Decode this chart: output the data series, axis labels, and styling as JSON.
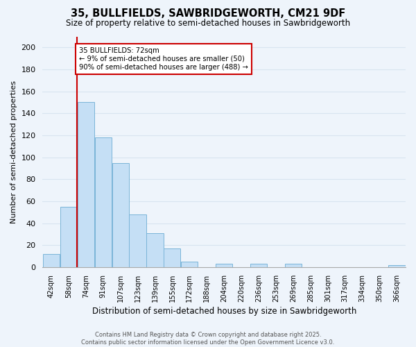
{
  "title": "35, BULLFIELDS, SAWBRIDGEWORTH, CM21 9DF",
  "subtitle": "Size of property relative to semi-detached houses in Sawbridgeworth",
  "xlabel": "Distribution of semi-detached houses by size in Sawbridgeworth",
  "ylabel": "Number of semi-detached properties",
  "bar_labels": [
    "42sqm",
    "58sqm",
    "74sqm",
    "91sqm",
    "107sqm",
    "123sqm",
    "139sqm",
    "155sqm",
    "172sqm",
    "188sqm",
    "204sqm",
    "220sqm",
    "236sqm",
    "253sqm",
    "269sqm",
    "285sqm",
    "301sqm",
    "317sqm",
    "334sqm",
    "350sqm",
    "366sqm"
  ],
  "bar_values": [
    12,
    55,
    150,
    118,
    95,
    48,
    31,
    17,
    5,
    0,
    3,
    0,
    3,
    0,
    3,
    0,
    0,
    0,
    0,
    0,
    2
  ],
  "bar_color": "#c5dff5",
  "bar_edge_color": "#7ab4d8",
  "pct_smaller": 9,
  "pct_smaller_count": 50,
  "pct_larger": 90,
  "pct_larger_count": 488,
  "annotation_box_color": "#ffffff",
  "annotation_box_edge": "#cc0000",
  "line_color": "#cc0000",
  "ylim": [
    0,
    210
  ],
  "yticks": [
    0,
    20,
    40,
    60,
    80,
    100,
    120,
    140,
    160,
    180,
    200
  ],
  "footer_line1": "Contains HM Land Registry data © Crown copyright and database right 2025.",
  "footer_line2": "Contains public sector information licensed under the Open Government Licence v3.0.",
  "bg_color": "#eef4fb",
  "grid_color": "#d8e4f0"
}
